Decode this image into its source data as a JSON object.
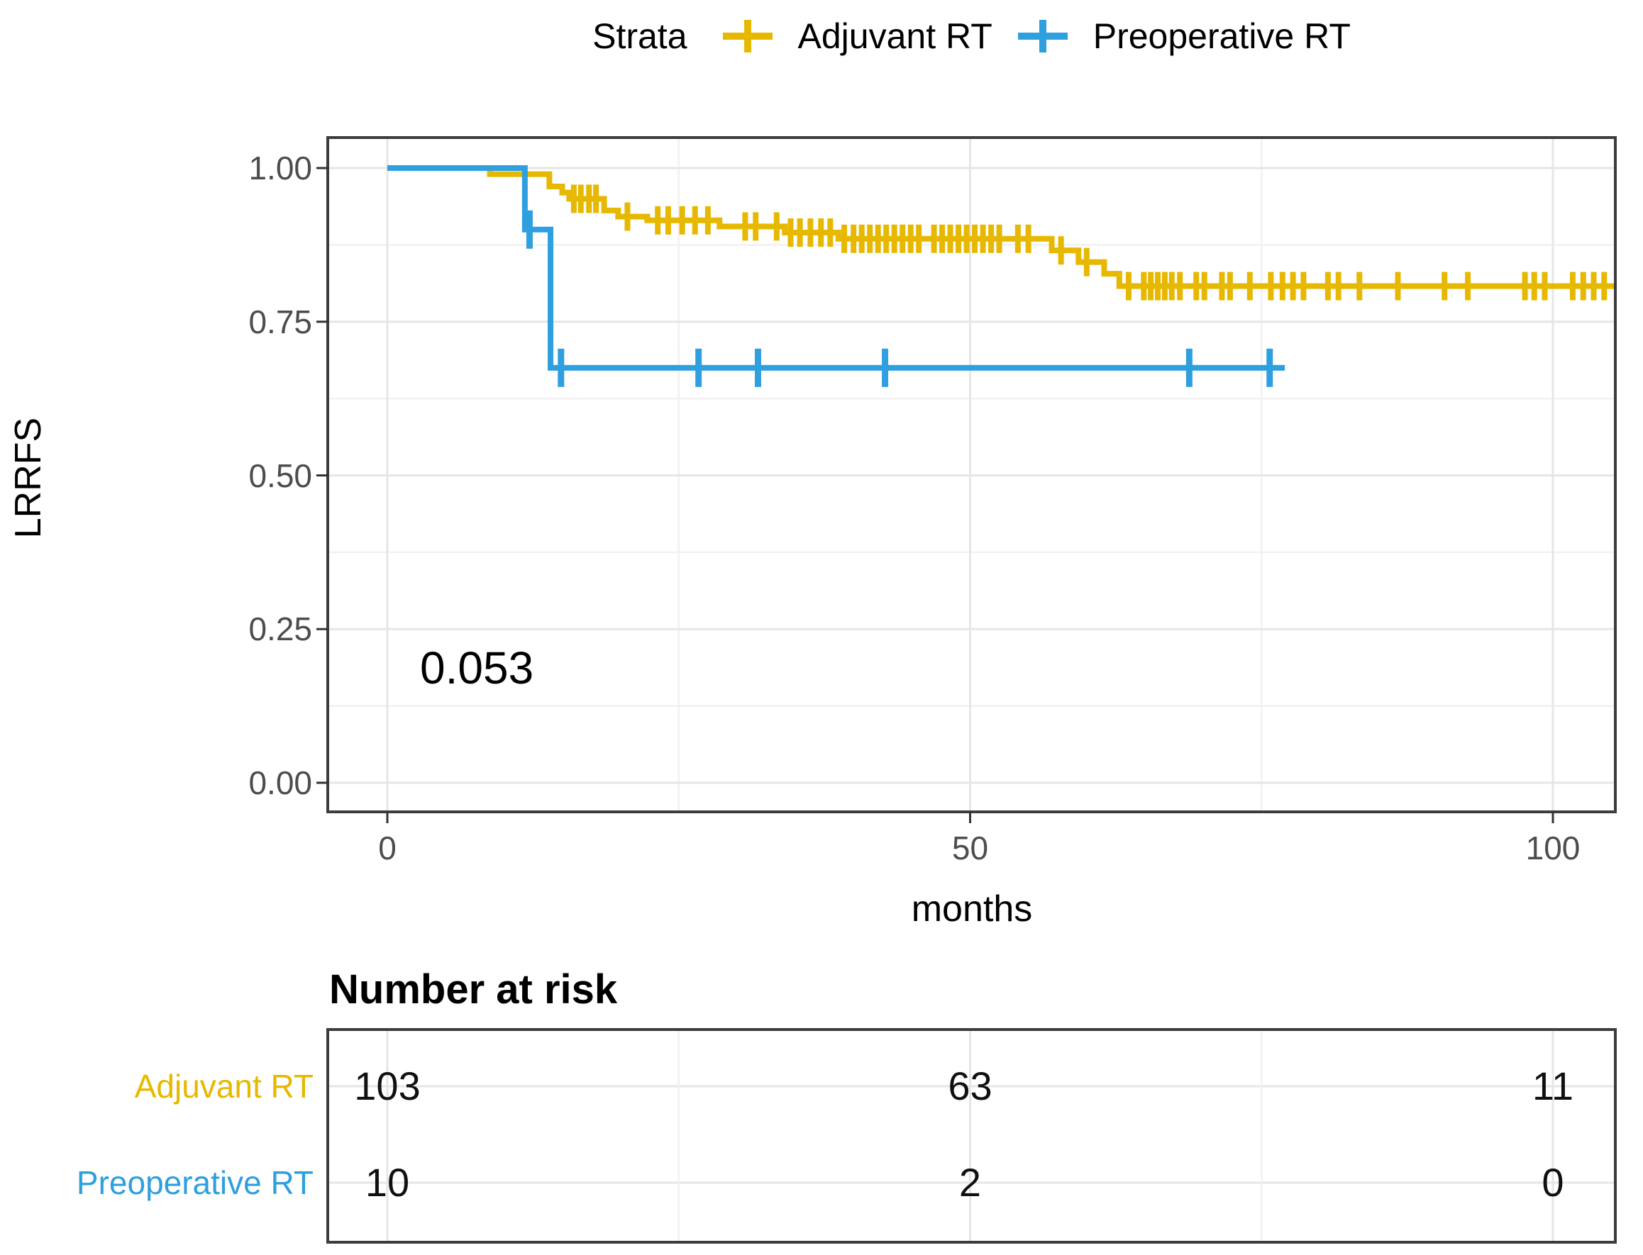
{
  "figure": {
    "background": "#ffffff",
    "axis_text_color": "#4d4d4d",
    "panel_border_color": "#3c3c3c",
    "grid_major_color": "#e6e6e6",
    "grid_minor_color": "#f1f1f1"
  },
  "legend": {
    "title": "Strata"
  },
  "chart_data": {
    "type": "line",
    "subtype": "kaplan-meier",
    "title": "",
    "xlabel": "months",
    "ylabel": "LRRFS",
    "pvalue": "0.053",
    "xlim": [
      -5,
      105.3
    ],
    "ylim": [
      -0.05,
      1.05
    ],
    "x_ticks": [
      {
        "label": "0",
        "v": 0
      },
      {
        "label": "50",
        "v": 50
      },
      {
        "label": "100",
        "v": 100
      }
    ],
    "x_minor": [
      25,
      75
    ],
    "y_ticks": [
      {
        "label": "1.00",
        "v": 1.0
      },
      {
        "label": "0.75",
        "v": 0.75
      },
      {
        "label": "0.50",
        "v": 0.5
      },
      {
        "label": "0.25",
        "v": 0.25
      },
      {
        "label": "0.00",
        "v": 0.0
      }
    ],
    "y_minor": [
      0.875,
      0.625,
      0.375,
      0.125
    ],
    "legend_position": "top",
    "grid": true,
    "series": [
      {
        "name": "Adjuvant RT",
        "color": "#E7B800",
        "end": 105.3,
        "steps": [
          [
            0,
            1.0
          ],
          [
            8.8,
            0.99
          ],
          [
            13.9,
            0.97
          ],
          [
            15.0,
            0.96
          ],
          [
            15.6,
            0.95
          ],
          [
            18.6,
            0.931
          ],
          [
            19.8,
            0.921
          ],
          [
            22.3,
            0.915
          ],
          [
            28.5,
            0.905
          ],
          [
            34.1,
            0.895
          ],
          [
            38.7,
            0.885
          ],
          [
            57.0,
            0.866
          ],
          [
            59.3,
            0.847
          ],
          [
            61.5,
            0.828
          ],
          [
            62.8,
            0.808
          ]
        ],
        "censors": [
          16,
          16.6,
          17.3,
          17.9,
          20.6,
          23.2,
          24.1,
          25.3,
          26.4,
          27.5,
          30.7,
          31.6,
          33.4,
          34.6,
          35.4,
          36.3,
          37.2,
          38,
          39.2,
          40,
          40.7,
          41.4,
          42.1,
          42.8,
          43.5,
          44.2,
          44.9,
          45.6,
          46.9,
          47.6,
          48.3,
          49,
          49.7,
          50.4,
          51.1,
          51.8,
          52.5,
          54.1,
          55,
          57.8,
          60,
          63.6,
          64.9,
          65.5,
          66.1,
          66.7,
          67.3,
          68,
          69.4,
          70.1,
          71.6,
          72.3,
          74,
          75.8,
          76.8,
          77.7,
          78.6,
          80.7,
          81.6,
          83.4,
          86.7,
          90.7,
          92.7,
          97.6,
          98.4,
          99.3,
          101.7,
          102.6,
          103.5,
          104.4
        ]
      },
      {
        "name": "Preoperative RT",
        "color": "#2E9FDF",
        "end": 77.0,
        "steps": [
          [
            0,
            1.0
          ],
          [
            11.8,
            0.9
          ],
          [
            14.0,
            0.675
          ]
        ],
        "censors": [
          12.2,
          14.9,
          26.7,
          31.8,
          42.7,
          68.8,
          75.7
        ]
      }
    ],
    "risk_table": {
      "title": "Number at risk",
      "columns": [
        0,
        50,
        100
      ],
      "rows": [
        {
          "name": "Adjuvant RT",
          "color": "#E7B800",
          "values": [
            "103",
            "63",
            "11"
          ]
        },
        {
          "name": "Preoperative RT",
          "color": "#2E9FDF",
          "values": [
            "10",
            "2",
            "0"
          ]
        }
      ]
    }
  }
}
